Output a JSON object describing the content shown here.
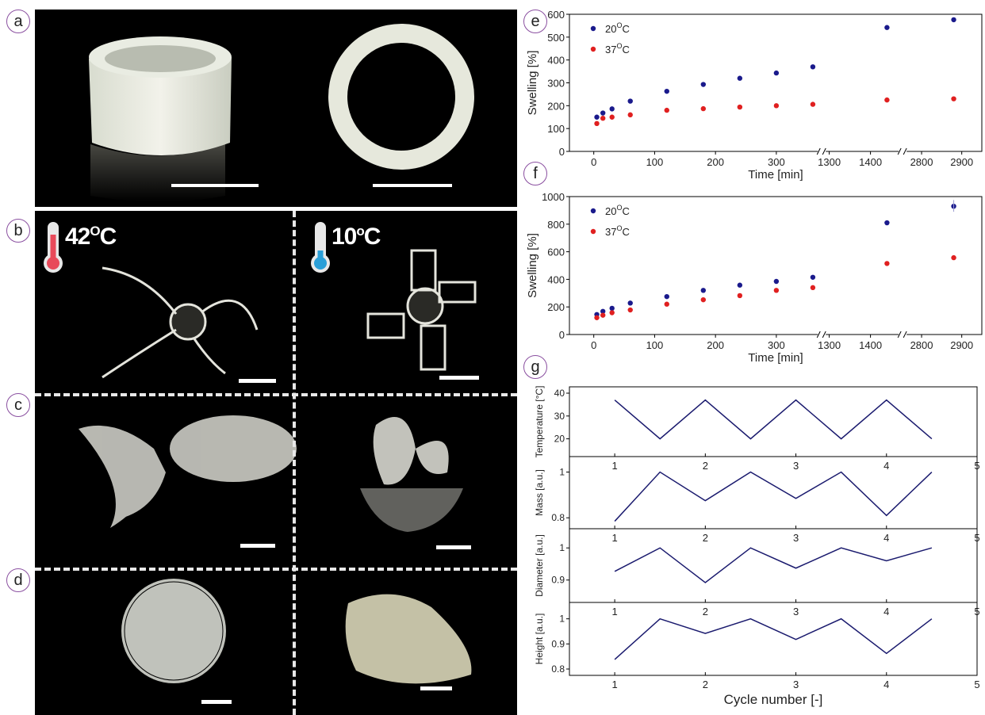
{
  "labels": {
    "a": "a",
    "b": "b",
    "c": "c",
    "d": "d",
    "e": "e",
    "f": "f",
    "g": "g"
  },
  "photos": {
    "b_left_temp": {
      "num": "42",
      "sup": "O",
      "unit": "C"
    },
    "b_right_temp": {
      "num": "10",
      "sup": "o",
      "unit": "C"
    }
  },
  "chart_data": [
    {
      "type": "scatter",
      "panel": "e",
      "xlabel": "Time [min]",
      "ylabel": "Swelling [%]",
      "ylim": [
        0,
        600
      ],
      "yticks": [
        "0",
        "100",
        "200",
        "300",
        "400",
        "500",
        "600"
      ],
      "xticks": [
        "0",
        "100",
        "200",
        "300",
        "1300",
        "1400",
        "2800",
        "2900"
      ],
      "axis_breaks": true,
      "legend_position": "top-left",
      "series": [
        {
          "name": "20",
          "name_sup": "O",
          "name_unit": "C",
          "color": "#1a1a8c",
          "x": [
            5,
            15,
            30,
            60,
            120,
            180,
            240,
            300,
            360,
            1440,
            2880
          ],
          "y": [
            150,
            168,
            186,
            220,
            263,
            293,
            320,
            343,
            370,
            542,
            576
          ]
        },
        {
          "name": "37",
          "name_sup": "O",
          "name_unit": "C",
          "color": "#e02020",
          "x": [
            5,
            15,
            30,
            60,
            120,
            180,
            240,
            300,
            360,
            1440,
            2880
          ],
          "y": [
            122,
            145,
            150,
            160,
            180,
            187,
            194,
            200,
            206,
            225,
            230
          ]
        }
      ]
    },
    {
      "type": "scatter",
      "panel": "f",
      "xlabel": "Time [min]",
      "ylabel": "Swelling [%]",
      "ylim": [
        0,
        1000
      ],
      "yticks": [
        "0",
        "200",
        "400",
        "600",
        "800",
        "1000"
      ],
      "xticks": [
        "0",
        "100",
        "200",
        "300",
        "1300",
        "1400",
        "2800",
        "2900"
      ],
      "axis_breaks": true,
      "legend_position": "top-left",
      "series": [
        {
          "name": "20",
          "name_sup": "O",
          "name_unit": "C",
          "color": "#1a1a8c",
          "x": [
            5,
            15,
            30,
            60,
            120,
            180,
            240,
            300,
            360,
            1440,
            2880
          ],
          "y": [
            145,
            168,
            190,
            228,
            275,
            320,
            358,
            385,
            415,
            810,
            930
          ]
        },
        {
          "name": "37",
          "name_sup": "O",
          "name_unit": "C",
          "color": "#e02020",
          "x": [
            5,
            15,
            30,
            60,
            120,
            180,
            240,
            300,
            360,
            1440,
            2880
          ],
          "y": [
            122,
            140,
            158,
            178,
            220,
            252,
            282,
            320,
            340,
            515,
            557
          ]
        }
      ]
    },
    {
      "type": "line",
      "panel": "g",
      "xlabel": "Cycle number [-]",
      "xlim": [
        0.5,
        5
      ],
      "xticks": [
        "1",
        "2",
        "3",
        "4",
        "5"
      ],
      "color": "#1a1a6e",
      "rows": [
        {
          "ylabel": "Temperature [°C]",
          "ylim": [
            15,
            40
          ],
          "yticks": [
            20,
            30,
            40
          ],
          "x": [
            1,
            1.5,
            2,
            2.5,
            3,
            3.5,
            4,
            4.5
          ],
          "y": [
            37,
            20,
            37,
            20,
            37,
            20,
            37,
            20
          ]
        },
        {
          "ylabel": "Mass [a.u.]",
          "ylim": [
            0.78,
            1.04
          ],
          "yticks": [
            0.8,
            1.0
          ],
          "x": [
            1,
            1.5,
            2,
            2.5,
            3,
            3.5,
            4,
            4.5
          ],
          "y": [
            0.785,
            1.0,
            0.875,
            1.0,
            0.885,
            1.0,
            0.81,
            1.0
          ]
        },
        {
          "ylabel": "Diameter [a.u.]",
          "ylim": [
            0.85,
            1.04
          ],
          "yticks": [
            0.9,
            1.0
          ],
          "x": [
            1,
            1.5,
            2,
            2.5,
            3,
            3.5,
            4,
            4.5
          ],
          "y": [
            0.927,
            1.0,
            0.892,
            1.0,
            0.937,
            1.0,
            0.96,
            1.0
          ]
        },
        {
          "ylabel": "Height [a.u.]",
          "ylim": [
            0.8,
            1.04
          ],
          "yticks": [
            0.8,
            0.9,
            1.0
          ],
          "x": [
            1,
            1.5,
            2,
            2.5,
            3,
            3.5,
            4,
            4.5
          ],
          "y": [
            0.838,
            1.0,
            0.942,
            1.0,
            0.918,
            1.0,
            0.862,
            1.0
          ]
        }
      ]
    }
  ]
}
